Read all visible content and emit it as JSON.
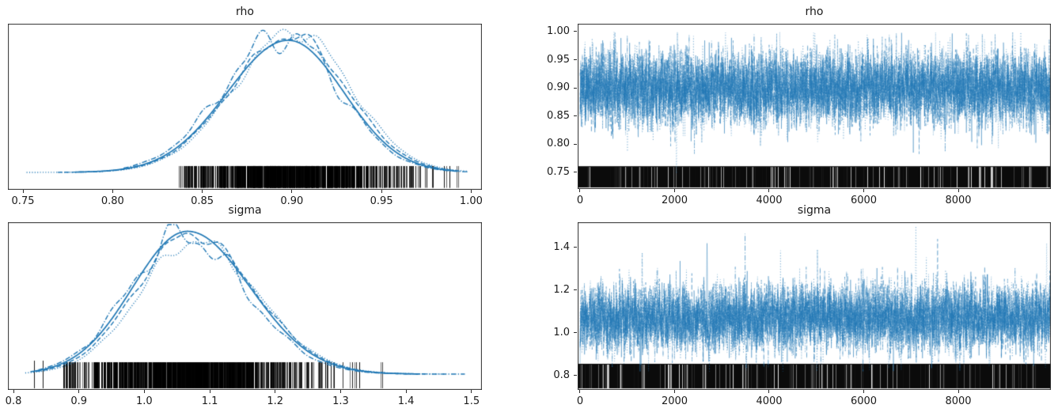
{
  "figure": {
    "background": "#ffffff",
    "text_color": "#1a1a1a",
    "spine_color": "#2b2b2b",
    "accent_blue": "#1f77b4",
    "rug_color": "#000000"
  },
  "chart_data": [
    {
      "id": "kde-rho",
      "type": "line",
      "kind": "posterior-kde",
      "title": "rho",
      "grid": false,
      "legend": "none",
      "xlim": [
        0.7416,
        1.006
      ],
      "xticks": [
        0.75,
        0.8,
        0.85,
        0.9,
        0.95,
        1.0
      ],
      "xtick_labels": [
        "0.75",
        "0.80",
        "0.85",
        "0.90",
        "0.95",
        "1.00"
      ],
      "n_chains": 4,
      "chain_linestyles": [
        "solid",
        "dashed",
        "dashdot",
        "dotted"
      ],
      "line_color": "#1f77b4",
      "distribution": {
        "mean": 0.898,
        "sd_left": 0.034,
        "sd_right": 0.031
      },
      "density_curve": {
        "x": [
          0.75,
          0.7625,
          0.775,
          0.7875,
          0.8,
          0.8125,
          0.825,
          0.8375,
          0.85,
          0.8625,
          0.875,
          0.8875,
          0.9,
          0.9125,
          0.925,
          0.9375,
          0.95,
          0.9625,
          0.975,
          0.9875,
          1.0
        ],
        "density": [
          0.0,
          0.0,
          0.001,
          0.005,
          0.016,
          0.043,
          0.099,
          0.205,
          0.37,
          0.58,
          0.794,
          0.953,
          0.998,
          0.896,
          0.685,
          0.445,
          0.244,
          0.115,
          0.046,
          0.015,
          0.005
        ]
      },
      "curve_span": [
        0.752,
        0.998
      ],
      "chain_trims": [
        [
          0.11,
          0.03
        ],
        [
          0.07,
          0.015
        ],
        [
          0.22,
          0.0
        ],
        [
          0.0,
          0.0
        ]
      ],
      "chain_peak_scales": [
        0.965,
        1.0,
        1.0,
        1.03
      ],
      "rug": {
        "min": 0.837,
        "max": 0.995,
        "outliers": [],
        "color": "#000000"
      },
      "layout": {
        "baseline_frac": 0.895,
        "peak_frac": 0.071,
        "rug_top_frac": 0.857,
        "rug_bottom_frac": 0.988
      }
    },
    {
      "id": "trace-rho",
      "type": "line",
      "kind": "mcmc-trace",
      "title": "rho",
      "grid": false,
      "legend": "none",
      "xlim": [
        -50,
        9958
      ],
      "xticks": [
        0,
        2000,
        4000,
        6000,
        8000
      ],
      "xtick_labels": [
        "0",
        "2000",
        "4000",
        "6000",
        "8000"
      ],
      "ylim": [
        0.7205,
        1.014
      ],
      "yticks": [
        1.0,
        0.95,
        0.9,
        0.85,
        0.8,
        0.75
      ],
      "ytick_labels": [
        "1.00",
        "0.95",
        "0.90",
        "0.85",
        "0.80",
        "0.75"
      ],
      "n_samples": 10000,
      "n_chains": 4,
      "chain_linestyles": [
        "solid",
        "dashed",
        "dashdot",
        "dotted"
      ],
      "line_color": "#1f77b4",
      "line_alpha": 0.45,
      "series_summary": {
        "mean": 0.899,
        "sd": 0.0345,
        "min": 0.745,
        "max": 0.9995
      },
      "clip_max": 0.9995,
      "spikes": [
        {
          "x_frac": 0.205,
          "value": 0.748,
          "chain": 3
        }
      ],
      "rug": {
        "top_value": 0.761,
        "color": "#000000"
      }
    },
    {
      "id": "kde-sigma",
      "type": "line",
      "kind": "posterior-kde",
      "title": "sigma",
      "grid": false,
      "legend": "none",
      "xlim": [
        0.7915,
        1.516
      ],
      "xticks": [
        0.8,
        0.9,
        1.0,
        1.1,
        1.2,
        1.3,
        1.4,
        1.5
      ],
      "xtick_labels": [
        "0.8",
        "0.9",
        "1.0",
        "1.1",
        "1.2",
        "1.3",
        "1.4",
        "1.5"
      ],
      "n_chains": 4,
      "chain_linestyles": [
        "solid",
        "dashed",
        "dashdot",
        "dotted"
      ],
      "line_color": "#1f77b4",
      "distribution": {
        "mean": 1.066,
        "sd_left": 0.084,
        "sd_right": 0.096
      },
      "density_curve": {
        "x": [
          0.8,
          0.835,
          0.87,
          0.905,
          0.94,
          0.975,
          1.01,
          1.045,
          1.08,
          1.115,
          1.15,
          1.185,
          1.22,
          1.255,
          1.29,
          1.325,
          1.36,
          1.395,
          1.43,
          1.465,
          1.5
        ],
        "density": [
          0.007,
          0.023,
          0.066,
          0.159,
          0.325,
          0.557,
          0.8,
          0.969,
          0.989,
          0.878,
          0.682,
          0.464,
          0.277,
          0.144,
          0.066,
          0.026,
          0.009,
          0.003,
          0.001,
          0.0,
          0.0
        ]
      },
      "curve_span": [
        0.818,
        1.49
      ],
      "chain_trims": [
        [
          0.012,
          0.105
        ],
        [
          0.025,
          0.09
        ],
        [
          0.03,
          0.0
        ],
        [
          0.0,
          0.045
        ]
      ],
      "chain_peak_scales": [
        1.02,
        1.0,
        0.99,
        0.95
      ],
      "rug": {
        "min": 0.875,
        "max": 1.38,
        "outliers": [
          0.832,
          0.845
        ],
        "color": "#000000"
      },
      "layout": {
        "baseline_frac": 0.9057,
        "peak_frac": 0.0708,
        "rug_top_frac": 0.835,
        "rug_bottom_frac": 0.9906
      }
    },
    {
      "id": "trace-sigma",
      "type": "line",
      "kind": "mcmc-trace",
      "title": "sigma",
      "grid": false,
      "legend": "none",
      "xlim": [
        -50,
        9958
      ],
      "xticks": [
        0,
        2000,
        4000,
        6000,
        8000
      ],
      "xtick_labels": [
        "0",
        "2000",
        "4000",
        "6000",
        "8000"
      ],
      "ylim": [
        0.7333,
        1.5185
      ],
      "yticks": [
        1.4,
        1.2,
        1.0,
        0.8
      ],
      "ytick_labels": [
        "1.4",
        "1.2",
        "1.0",
        "0.8"
      ],
      "n_samples": 10000,
      "n_chains": 4,
      "chain_linestyles": [
        "solid",
        "dashed",
        "dashdot",
        "dotted"
      ],
      "line_color": "#1f77b4",
      "line_alpha": 0.45,
      "series_summary": {
        "mean": 1.07,
        "sd": 0.082,
        "min": 0.82,
        "max": 1.5
      },
      "clip_max": null,
      "spikes": [
        {
          "x_frac": 0.714,
          "value": 1.5,
          "chain": 3
        },
        {
          "x_frac": 0.76,
          "value": 1.44,
          "chain": 1
        },
        {
          "x_frac": 0.27,
          "value": 1.42,
          "chain": 0
        },
        {
          "x_frac": 0.992,
          "value": 1.42,
          "chain": 3
        }
      ],
      "rug": {
        "top_value": 0.8556,
        "color": "#000000"
      }
    }
  ]
}
